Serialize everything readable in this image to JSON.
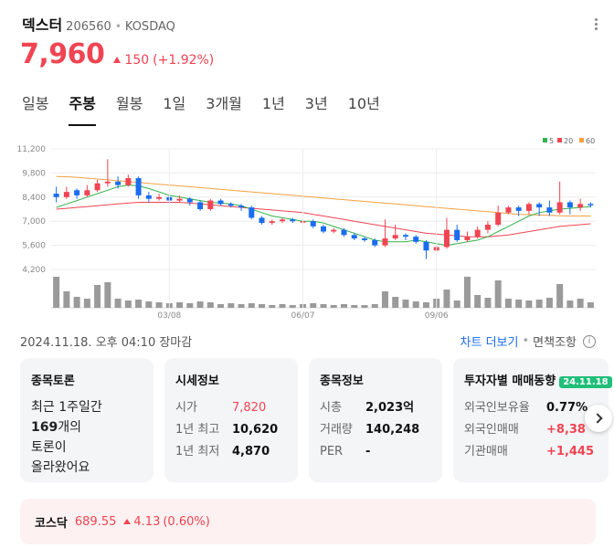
{
  "stock": {
    "name": "덱스터",
    "code": "206560",
    "separator": "•",
    "market": "KOSDAQ",
    "price": "7,960",
    "change": "150",
    "change_pct": "(+1.92%)"
  },
  "tabs": [
    "일봉",
    "주봉",
    "월봉",
    "1일",
    "3개월",
    "1년",
    "3년",
    "10년"
  ],
  "active_tab": "주봉",
  "chart_data": {
    "type": "candlestick",
    "y_ticks": [
      "11,200",
      "9,800",
      "8,400",
      "7,000",
      "5,600",
      "4,200"
    ],
    "ylim": [
      4200,
      11200
    ],
    "x_ticks": [
      "03/08",
      "06/07",
      "09/06"
    ],
    "legend": [
      {
        "label": "5",
        "color": "#33b24a"
      },
      {
        "label": "20",
        "color": "#f04452"
      },
      {
        "label": "60",
        "color": "#f5a142"
      }
    ],
    "candles": [
      [
        8600,
        8400,
        9000,
        8100
      ],
      [
        8400,
        8700,
        9000,
        8300
      ],
      [
        8800,
        8500,
        8900,
        8300
      ],
      [
        8500,
        8800,
        9100,
        8400
      ],
      [
        8800,
        9200,
        9400,
        8700
      ],
      [
        9200,
        9300,
        10600,
        9000
      ],
      [
        9300,
        9100,
        9600,
        8900
      ],
      [
        9100,
        9500,
        9700,
        9000
      ],
      [
        9500,
        8500,
        9600,
        8300
      ],
      [
        8500,
        8300,
        8700,
        8100
      ],
      [
        8300,
        8400,
        8600,
        8200
      ],
      [
        8400,
        8200,
        8500,
        8000
      ],
      [
        8200,
        8300,
        8500,
        8100
      ],
      [
        8300,
        8100,
        8400,
        7900
      ],
      [
        8100,
        7700,
        8200,
        7600
      ],
      [
        7700,
        8200,
        8300,
        7600
      ],
      [
        8200,
        8000,
        8300,
        7900
      ],
      [
        8000,
        7900,
        8100,
        7800
      ],
      [
        7900,
        7800,
        8000,
        7600
      ],
      [
        7800,
        7200,
        7900,
        7100
      ],
      [
        7200,
        6900,
        7300,
        6800
      ],
      [
        6900,
        7000,
        7100,
        6800
      ],
      [
        7000,
        7100,
        7200,
        6900
      ],
      [
        7100,
        7000,
        7200,
        6900
      ],
      [
        7000,
        7000,
        7100,
        6800
      ],
      [
        7000,
        6700,
        7100,
        6600
      ],
      [
        6700,
        6400,
        6800,
        6300
      ],
      [
        6400,
        6500,
        6600,
        6300
      ],
      [
        6500,
        6200,
        6600,
        6100
      ],
      [
        6200,
        6000,
        6300,
        5900
      ],
      [
        6000,
        5900,
        6100,
        5800
      ],
      [
        5900,
        5600,
        6000,
        5500
      ],
      [
        5600,
        6000,
        7100,
        5500
      ],
      [
        6000,
        6200,
        6800,
        5900
      ],
      [
        6200,
        6100,
        6300,
        5900
      ],
      [
        6100,
        5800,
        6200,
        5700
      ],
      [
        5800,
        5300,
        5900,
        4800
      ],
      [
        5300,
        5500,
        5600,
        5200
      ],
      [
        5500,
        6500,
        7200,
        5400
      ],
      [
        6500,
        5900,
        6800,
        5800
      ],
      [
        5900,
        6100,
        6400,
        5800
      ],
      [
        6100,
        6500,
        6700,
        6000
      ],
      [
        6500,
        6800,
        7000,
        6300
      ],
      [
        6800,
        7500,
        7900,
        6700
      ],
      [
        7500,
        7800,
        7900,
        7400
      ],
      [
        7800,
        7600,
        7900,
        7300
      ],
      [
        7600,
        8000,
        8100,
        7400
      ],
      [
        8000,
        7800,
        8100,
        7300
      ],
      [
        7800,
        7500,
        8200,
        7300
      ],
      [
        7500,
        8100,
        9300,
        7400
      ],
      [
        8100,
        7800,
        8200,
        7400
      ],
      [
        7800,
        8000,
        8300,
        7600
      ],
      [
        8000,
        7960,
        8100,
        7800
      ]
    ],
    "ma5": [
      7800,
      8000,
      8200,
      8400,
      8600,
      8800,
      9000,
      9100,
      9050,
      8900,
      8700,
      8500,
      8400,
      8300,
      8200,
      8100,
      8050,
      8000,
      7900,
      7700,
      7500,
      7300,
      7200,
      7100,
      7000,
      7000,
      6900,
      6700,
      6500,
      6300,
      6100,
      5900,
      5800,
      5800,
      5800,
      5900,
      5800,
      5700,
      5600,
      5700,
      5800,
      5900,
      6100,
      6400,
      6700,
      7000,
      7300,
      7500,
      7600,
      7700,
      7750,
      7800,
      7850
    ],
    "ma20": [
      7700,
      7750,
      7800,
      7850,
      7900,
      7950,
      8000,
      8050,
      8100,
      8100,
      8100,
      8100,
      8100,
      8050,
      8000,
      7950,
      7900,
      7850,
      7800,
      7750,
      7700,
      7650,
      7600,
      7550,
      7500,
      7400,
      7300,
      7200,
      7100,
      7000,
      6900,
      6800,
      6700,
      6600,
      6500,
      6400,
      6300,
      6250,
      6200,
      6150,
      6100,
      6100,
      6100,
      6150,
      6200,
      6300,
      6400,
      6500,
      6600,
      6700,
      6750,
      6800,
      6850
    ],
    "ma60": [
      9600,
      9580,
      9550,
      9500,
      9450,
      9400,
      9350,
      9300,
      9250,
      9200,
      9150,
      9100,
      9050,
      9000,
      8950,
      8900,
      8850,
      8800,
      8750,
      8700,
      8650,
      8600,
      8550,
      8500,
      8450,
      8400,
      8350,
      8300,
      8250,
      8200,
      8150,
      8100,
      8050,
      8000,
      7950,
      7900,
      7850,
      7800,
      7750,
      7700,
      7650,
      7600,
      7550,
      7500,
      7450,
      7400,
      7380,
      7360,
      7340,
      7320,
      7300,
      7300,
      7300
    ],
    "volume": [
      34,
      18,
      12,
      10,
      25,
      28,
      10,
      8,
      9,
      7,
      6,
      5,
      6,
      5,
      7,
      6,
      4,
      5,
      4,
      5,
      4,
      3,
      4,
      3,
      4,
      5,
      4,
      3,
      4,
      3,
      3,
      4,
      18,
      12,
      9,
      7,
      6,
      10,
      20,
      8,
      34,
      14,
      11,
      30,
      10,
      9,
      8,
      9,
      11,
      26,
      8,
      10,
      6
    ]
  },
  "timestamp": "2024.11.18. 오후 04:10 장마감",
  "links": {
    "chart_more": "차트 더보기",
    "separator": "•",
    "disclaimer": "면책조항",
    "info": "i"
  },
  "cards": {
    "discussion": {
      "title": "종목토론",
      "line1": "최근 1주일간",
      "count": "169",
      "count_suffix": "개의",
      "line3": "토론이",
      "line4": "올라왔어요"
    },
    "market_info": {
      "title": "시세정보",
      "rows": [
        {
          "label": "시가",
          "value": "7,820"
        },
        {
          "label": "1년 최고",
          "value": "10,620"
        },
        {
          "label": "1년 최저",
          "value": "4,870"
        }
      ]
    },
    "stock_info": {
      "title": "종목정보",
      "rows": [
        {
          "label": "시총",
          "value": "2,023억"
        },
        {
          "label": "거래량",
          "value": "140,248"
        },
        {
          "label": "PER",
          "value": "-"
        }
      ]
    },
    "investor": {
      "title": "투자자별 매매동향",
      "date": "24.11.18",
      "rows": [
        {
          "label": "외국인보유율",
          "value": "0.77%"
        },
        {
          "label": "외국인매매",
          "value": "+8,38"
        },
        {
          "label": "기관매매",
          "value": "+1,445"
        }
      ]
    }
  },
  "index": {
    "name": "코스닥",
    "value": "689.55",
    "change": "4.13",
    "change_pct": "(0.60%)"
  }
}
